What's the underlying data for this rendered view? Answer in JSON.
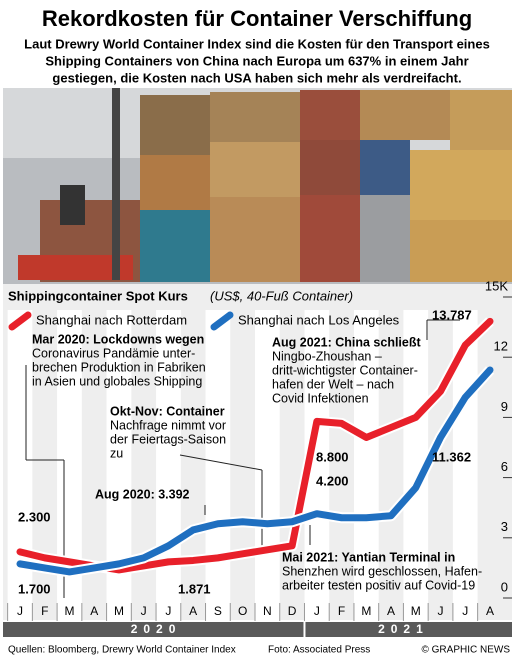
{
  "chart_data": {
    "type": "line",
    "title": "Rekordkosten für Container Verschiffung",
    "subtitle": [
      "Laut Drewry World Container Index sind die Kosten für den Transport eines",
      "Shipping Containers von China nach Europa um 637% in einem Jahr",
      "gestiegen, die Kosten nach USA haben sich mehr als verdreifacht."
    ],
    "chart_title": "Shippingcontainer Spot Kurs",
    "unit": "(US$, 40-Fuß Container)",
    "categories": [
      "J",
      "F",
      "M",
      "A",
      "M",
      "J",
      "J",
      "A",
      "S",
      "O",
      "N",
      "D",
      "J",
      "F",
      "M",
      "A",
      "M",
      "J",
      "J",
      "A"
    ],
    "years": [
      "2020",
      "2021"
    ],
    "ylim": [
      0,
      15
    ],
    "yticks": [
      0,
      3,
      6,
      9,
      12,
      {
        "value": 15,
        "label": "15K"
      }
    ],
    "series": [
      {
        "name": "Shanghai nach Rotterdam",
        "color": "#e8202a",
        "values": [
          2.3,
          2.0,
          1.8,
          1.6,
          1.4,
          1.6,
          1.8,
          1.871,
          2.0,
          2.2,
          2.4,
          2.6,
          8.8,
          8.7,
          8.0,
          8.5,
          9.0,
          10.3,
          12.6,
          13.787
        ],
        "value_labels": [
          "2.300",
          null,
          null,
          null,
          null,
          null,
          null,
          "1.871",
          null,
          null,
          null,
          null,
          "8.800",
          null,
          null,
          null,
          null,
          null,
          null,
          "13.787"
        ]
      },
      {
        "name": "Shanghai nach Los Angeles",
        "color": "#1f6fc0",
        "values": [
          1.7,
          1.5,
          1.3,
          1.5,
          1.7,
          2.0,
          2.6,
          3.392,
          3.7,
          3.8,
          3.7,
          3.8,
          4.2,
          4.0,
          4.0,
          4.1,
          5.5,
          8.0,
          10.0,
          11.362
        ],
        "value_labels": [
          "1.700",
          null,
          null,
          null,
          null,
          null,
          null,
          null,
          null,
          null,
          null,
          null,
          "4.200",
          null,
          null,
          null,
          null,
          null,
          null,
          "11.362"
        ]
      }
    ],
    "annotations": [
      {
        "lines": [
          "Mar 2020: Lockdowns wegen",
          "Coronavirus Pandämie unter-",
          "brechen Produktion in Fabriken",
          "in Asien und globales Shipping"
        ]
      },
      {
        "lines": [
          "Okt-Nov:  Container",
          "Nachfrage nimmt vor",
          "der Feiertags-Saison",
          "zu"
        ]
      },
      {
        "lines": [
          "Aug 2021: China schließt",
          "Ningbo-Zhoushan –",
          "dritt-wichtigster Container-",
          "hafen der Welt – nach",
          "Covid Infektionen"
        ]
      },
      {
        "lines": [
          "Aug 2020: 3.392"
        ]
      },
      {
        "lines": [
          "Mai 2021: Yantian Terminal in",
          "Shenzhen wird geschlossen, Hafen-",
          "arbeiter testen positiv auf Covid-19"
        ]
      }
    ],
    "source": "Quellen: Bloomberg, Drewry World Container Index",
    "credit": "Foto: Associated Press",
    "brand": "© GRAPHIC NEWS"
  }
}
